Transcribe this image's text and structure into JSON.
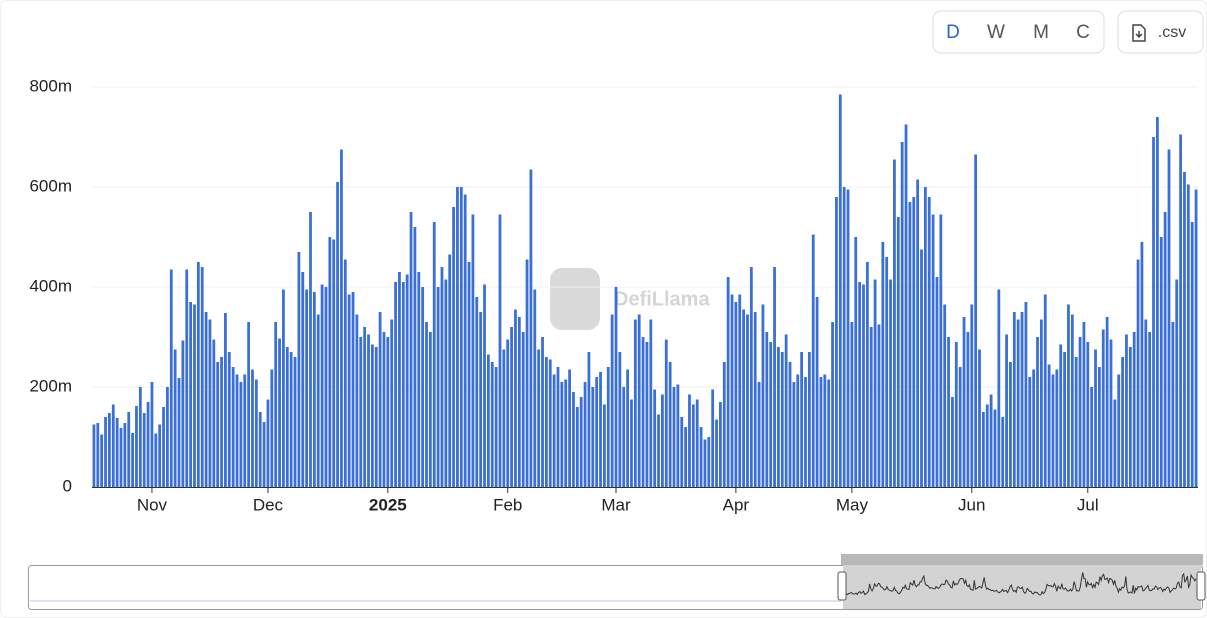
{
  "controls": {
    "intervals": [
      "D",
      "W",
      "M",
      "C"
    ],
    "csv": ".csv"
  },
  "watermark": "DefiLlama",
  "chart_data": {
    "type": "bar",
    "color": "#3a6fd8",
    "grid": true,
    "ylim": [
      0,
      800
    ],
    "yticks": [
      0,
      {
        "value": 200,
        "label": "200m"
      },
      {
        "value": 400,
        "label": "400m"
      },
      {
        "value": 600,
        "label": "600m"
      },
      {
        "value": 800,
        "label": "800m"
      }
    ],
    "categories": [
      null,
      null,
      null,
      null,
      null,
      null,
      null,
      null,
      null,
      null,
      null,
      null,
      null,
      null,
      null,
      "Nov",
      null,
      null,
      null,
      null,
      null,
      null,
      null,
      null,
      null,
      null,
      null,
      null,
      null,
      null,
      null,
      null,
      null,
      null,
      null,
      null,
      null,
      null,
      null,
      null,
      null,
      null,
      null,
      null,
      null,
      "Dec",
      null,
      null,
      null,
      null,
      null,
      null,
      null,
      null,
      null,
      null,
      null,
      null,
      null,
      null,
      null,
      null,
      null,
      null,
      null,
      null,
      null,
      null,
      null,
      null,
      null,
      null,
      null,
      null,
      null,
      null,
      "2025",
      null,
      null,
      null,
      null,
      null,
      null,
      null,
      null,
      null,
      null,
      null,
      null,
      null,
      null,
      null,
      null,
      null,
      null,
      null,
      null,
      null,
      null,
      null,
      null,
      null,
      null,
      null,
      null,
      null,
      null,
      "Feb",
      null,
      null,
      null,
      null,
      null,
      null,
      null,
      null,
      null,
      null,
      null,
      null,
      null,
      null,
      null,
      null,
      null,
      null,
      null,
      null,
      null,
      null,
      null,
      null,
      null,
      null,
      null,
      "Mar",
      null,
      null,
      null,
      null,
      null,
      null,
      null,
      null,
      null,
      null,
      null,
      null,
      null,
      null,
      null,
      null,
      null,
      null,
      null,
      null,
      null,
      null,
      null,
      null,
      null,
      null,
      null,
      null,
      null,
      null,
      "Apr",
      null,
      null,
      null,
      null,
      null,
      null,
      null,
      null,
      null,
      null,
      null,
      null,
      null,
      null,
      null,
      null,
      null,
      null,
      null,
      null,
      null,
      null,
      null,
      null,
      null,
      null,
      null,
      null,
      null,
      "May",
      null,
      null,
      null,
      null,
      null,
      null,
      null,
      null,
      null,
      null,
      null,
      null,
      null,
      null,
      null,
      null,
      null,
      null,
      null,
      null,
      null,
      null,
      null,
      null,
      null,
      null,
      null,
      null,
      null,
      null,
      "Jun",
      null,
      null,
      null,
      null,
      null,
      null,
      null,
      null,
      null,
      null,
      null,
      null,
      null,
      null,
      null,
      null,
      null,
      null,
      null,
      null,
      null,
      null,
      null,
      null,
      null,
      null,
      null,
      null,
      null,
      "Jul",
      null,
      null,
      null,
      null,
      null,
      null,
      null,
      null,
      null,
      null,
      null,
      null,
      null,
      null,
      null,
      null,
      null,
      null,
      null,
      null,
      null,
      null,
      null,
      null,
      null,
      null,
      null,
      null
    ],
    "values": [
      125,
      128,
      105,
      140,
      148,
      165,
      138,
      118,
      128,
      150,
      108,
      162,
      200,
      148,
      170,
      210,
      107,
      125,
      160,
      200,
      435,
      275,
      218,
      293,
      435,
      370,
      365,
      450,
      440,
      350,
      335,
      295,
      250,
      260,
      348,
      270,
      240,
      225,
      210,
      225,
      330,
      235,
      215,
      150,
      130,
      175,
      235,
      330,
      297,
      395,
      280,
      270,
      260,
      470,
      430,
      395,
      550,
      390,
      345,
      405,
      400,
      500,
      495,
      610,
      675,
      455,
      385,
      390,
      345,
      300,
      320,
      305,
      285,
      280,
      350,
      310,
      300,
      335,
      410,
      430,
      410,
      425,
      550,
      520,
      430,
      400,
      330,
      310,
      530,
      400,
      440,
      415,
      465,
      560,
      600,
      600,
      585,
      450,
      545,
      380,
      350,
      405,
      265,
      250,
      240,
      545,
      275,
      295,
      320,
      355,
      340,
      310,
      455,
      635,
      395,
      275,
      300,
      260,
      255,
      225,
      240,
      210,
      215,
      235,
      190,
      160,
      180,
      210,
      270,
      200,
      220,
      230,
      165,
      240,
      345,
      400,
      270,
      200,
      235,
      175,
      335,
      345,
      300,
      290,
      335,
      195,
      145,
      185,
      295,
      250,
      200,
      205,
      140,
      120,
      185,
      165,
      175,
      120,
      95,
      100,
      195,
      135,
      170,
      250,
      420,
      385,
      370,
      385,
      355,
      345,
      440,
      350,
      210,
      365,
      310,
      290,
      440,
      280,
      270,
      305,
      250,
      210,
      225,
      270,
      220,
      270,
      505,
      380,
      220,
      225,
      215,
      330,
      580,
      785,
      600,
      595,
      330,
      500,
      410,
      405,
      450,
      320,
      415,
      325,
      490,
      460,
      415,
      655,
      540,
      690,
      725,
      570,
      580,
      615,
      475,
      600,
      580,
      545,
      420,
      545,
      365,
      300,
      180,
      290,
      240,
      340,
      310,
      365,
      665,
      275,
      150,
      165,
      185,
      155,
      395,
      140,
      305,
      250,
      350,
      335,
      350,
      370,
      220,
      235,
      300,
      335,
      385,
      245,
      225,
      235,
      285,
      270,
      365,
      345,
      260,
      300,
      330,
      290,
      200,
      275,
      240,
      315,
      340,
      295,
      175,
      225,
      260,
      305,
      280,
      310,
      455,
      490,
      335,
      310,
      700,
      740,
      500,
      550,
      675,
      330,
      415,
      705,
      630,
      605,
      530,
      595
    ]
  }
}
